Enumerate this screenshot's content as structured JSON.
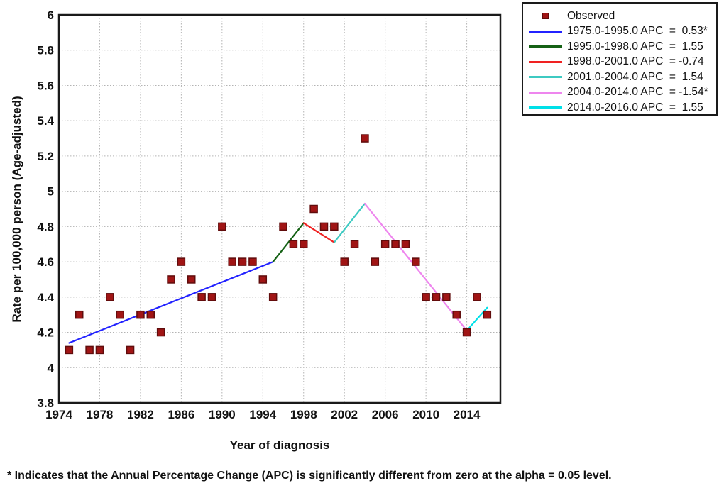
{
  "chart_data": {
    "type": "scatter",
    "title": "",
    "xlabel": "Year of diagnosis",
    "ylabel": "Rate per 100,000 person (Age-adjusted)",
    "xlim": [
      1974,
      2017.3
    ],
    "ylim": [
      3.8,
      6.0
    ],
    "x_ticks": [
      1974,
      1978,
      1982,
      1986,
      1990,
      1994,
      1998,
      2002,
      2006,
      2010,
      2014
    ],
    "y_ticks": [
      6,
      5.8,
      5.6,
      5.4,
      5.2,
      5,
      4.8,
      4.6,
      4.4,
      4.2,
      4,
      3.8
    ],
    "y_tick_labels": [
      "6",
      "5.8",
      "5.6",
      "5.4",
      "5.2",
      "5",
      "4.8",
      "4.6",
      "4.4",
      "4.2",
      "4",
      "3.8"
    ],
    "grid": true,
    "grid_color": "#b3b3b3",
    "axis_color": "#1a1a1a",
    "legend_position": "outside-top-right",
    "observed": {
      "label": "Observed",
      "marker": "square",
      "color": "#a01515",
      "border_color": "#600c0c",
      "years": [
        1975,
        1976,
        1977,
        1978,
        1979,
        1980,
        1981,
        1982,
        1983,
        1984,
        1985,
        1986,
        1987,
        1988,
        1989,
        1990,
        1991,
        1992,
        1993,
        1994,
        1995,
        1996,
        1997,
        1998,
        1999,
        2000,
        2001,
        2002,
        2003,
        2004,
        2005,
        2006,
        2007,
        2008,
        2009,
        2010,
        2011,
        2012,
        2013,
        2014,
        2015,
        2016
      ],
      "rates": [
        4.1,
        4.3,
        4.1,
        4.1,
        4.4,
        4.3,
        4.1,
        4.3,
        4.3,
        4.2,
        4.5,
        4.6,
        4.5,
        4.4,
        4.4,
        4.8,
        4.6,
        4.6,
        4.6,
        4.5,
        4.4,
        4.8,
        4.7,
        4.7,
        4.9,
        4.8,
        4.8,
        4.6,
        4.7,
        5.3,
        4.6,
        4.7,
        4.7,
        4.7,
        4.6,
        4.4,
        4.4,
        4.4,
        4.3,
        4.2,
        4.4,
        4.3
      ]
    },
    "trend_segments": [
      {
        "label": "1975.0-1995.0 APC  =  0.53*",
        "apc": 0.53,
        "significant": true,
        "color": "#2323ff",
        "x": [
          1975,
          1995
        ],
        "y": [
          4.14,
          4.6
        ]
      },
      {
        "label": "1995.0-1998.0 APC  =  1.55",
        "apc": 1.55,
        "significant": false,
        "color": "#156115",
        "x": [
          1995,
          1998
        ],
        "y": [
          4.6,
          4.82
        ]
      },
      {
        "label": "1998.0-2001.0 APC  = -0.74",
        "apc": -0.74,
        "significant": false,
        "color": "#f02222",
        "x": [
          1998,
          2001
        ],
        "y": [
          4.82,
          4.71
        ]
      },
      {
        "label": "2001.0-2004.0 APC  =  1.54",
        "apc": 1.54,
        "significant": false,
        "color": "#3ecac2",
        "x": [
          2001,
          2004
        ],
        "y": [
          4.71,
          4.93
        ]
      },
      {
        "label": "2004.0-2014.0 APC  = -1.54*",
        "apc": -1.54,
        "significant": true,
        "color": "#ee86ee",
        "x": [
          2004,
          2014
        ],
        "y": [
          4.93,
          4.21
        ]
      },
      {
        "label": "2014.0-2016.0 APC  =  1.55",
        "apc": 1.55,
        "significant": false,
        "color": "#00e0e8",
        "x": [
          2014,
          2016
        ],
        "y": [
          4.21,
          4.34
        ]
      }
    ],
    "footnote": "* Indicates that the Annual Percentage Change (APC) is significantly different from zero at the alpha = 0.05 level."
  }
}
